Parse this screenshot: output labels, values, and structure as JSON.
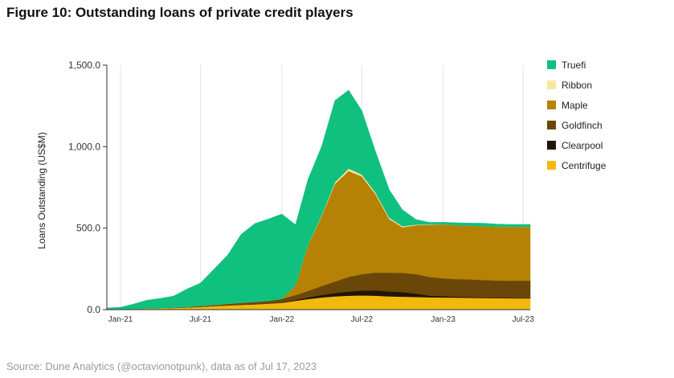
{
  "header": {
    "title": "Figure 10: Outstanding loans of private credit players"
  },
  "footer": {
    "source": "Source: Dune Analytics (@octavionotpunk), data as of Jul 17, 2023"
  },
  "chart_data": {
    "type": "area",
    "stacked": true,
    "ylabel": "Loans Outstanding (US$M)",
    "ylim": [
      0,
      1500
    ],
    "yticks": [
      "0.0",
      "500.0",
      "1,000.0",
      "1,500.0"
    ],
    "yticks_values": [
      0,
      500,
      1000,
      1500
    ],
    "xtick_labels": [
      "Jan-21",
      "Jul-21",
      "Jan-22",
      "Jul-22",
      "Jan-23",
      "Jul-23"
    ],
    "xtick_dates": [
      "2021-01-01",
      "2021-07-01",
      "2022-01-01",
      "2022-07-01",
      "2023-01-01",
      "2023-07-01"
    ],
    "xlim": [
      "2020-12-01",
      "2023-07-17"
    ],
    "grid": "vertical",
    "legend_position": "right",
    "x": [
      "2020-12-01",
      "2021-01-01",
      "2021-02-01",
      "2021-03-01",
      "2021-04-01",
      "2021-05-01",
      "2021-06-01",
      "2021-07-01",
      "2021-08-01",
      "2021-09-01",
      "2021-10-01",
      "2021-11-01",
      "2021-12-01",
      "2022-01-01",
      "2022-02-01",
      "2022-03-01",
      "2022-04-01",
      "2022-05-01",
      "2022-06-01",
      "2022-07-01",
      "2022-08-01",
      "2022-09-01",
      "2022-10-01",
      "2022-11-01",
      "2022-12-01",
      "2023-01-01",
      "2023-02-01",
      "2023-03-01",
      "2023-04-01",
      "2023-05-01",
      "2023-06-01",
      "2023-07-17"
    ],
    "series": [
      {
        "name": "Centrifuge",
        "color": "#f2b90c",
        "values": [
          0,
          3,
          5,
          7,
          9,
          11,
          14,
          18,
          22,
          26,
          30,
          33,
          37,
          42,
          55,
          65,
          75,
          82,
          86,
          88,
          86,
          82,
          80,
          78,
          76,
          75,
          74,
          73,
          72,
          71,
          70,
          70
        ]
      },
      {
        "name": "Clearpool",
        "color": "#1f1608",
        "values": [
          0,
          0,
          0,
          0,
          0,
          0,
          0,
          0,
          0,
          0,
          0,
          0,
          0,
          2,
          5,
          10,
          15,
          20,
          25,
          30,
          32,
          30,
          28,
          20,
          10,
          8,
          6,
          5,
          4,
          3,
          3,
          3
        ]
      },
      {
        "name": "Goldfinch",
        "color": "#6a4708",
        "values": [
          0,
          0,
          0,
          0,
          0,
          2,
          3,
          5,
          7,
          10,
          12,
          15,
          18,
          22,
          30,
          40,
          55,
          70,
          90,
          100,
          110,
          115,
          118,
          120,
          115,
          110,
          108,
          108,
          106,
          105,
          105,
          105
        ]
      },
      {
        "name": "Maple",
        "color": "#b58205",
        "values": [
          0,
          0,
          0,
          0,
          0,
          0,
          0,
          0,
          0,
          0,
          0,
          0,
          0,
          0,
          60,
          280,
          430,
          600,
          650,
          600,
          480,
          330,
          280,
          300,
          320,
          330,
          330,
          330,
          330,
          330,
          330,
          330
        ]
      },
      {
        "name": "Ribbon",
        "color": "#f7e79c",
        "values": [
          0,
          0,
          0,
          0,
          0,
          0,
          0,
          0,
          0,
          0,
          0,
          0,
          0,
          0,
          0,
          2,
          5,
          10,
          15,
          12,
          10,
          8,
          6,
          4,
          2,
          1,
          0,
          0,
          0,
          0,
          0,
          0
        ]
      },
      {
        "name": "Truefi",
        "color": "#10c07e",
        "values": [
          10,
          12,
          30,
          50,
          60,
          70,
          110,
          140,
          220,
          300,
          420,
          480,
          500,
          520,
          370,
          400,
          420,
          500,
          480,
          390,
          250,
          170,
          100,
          30,
          12,
          12,
          15,
          15,
          18,
          16,
          14,
          15
        ]
      }
    ],
    "legend_order": [
      "Truefi",
      "Ribbon",
      "Maple",
      "Goldfinch",
      "Clearpool",
      "Centrifuge"
    ]
  }
}
